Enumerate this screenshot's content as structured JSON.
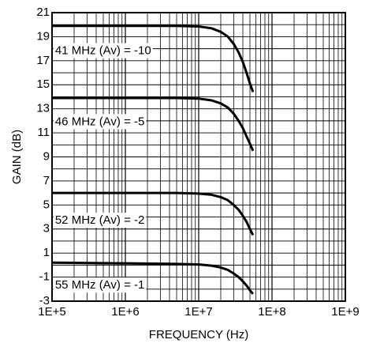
{
  "chart_data": {
    "type": "line",
    "title": "",
    "xlabel": "FREQUENCY (Hz)",
    "ylabel": "GAIN (dB)",
    "x_scale": "log",
    "xlim": [
      100000,
      1000000000
    ],
    "ylim": [
      -3,
      21
    ],
    "grid": true,
    "x_tick_labels": [
      "1E+5",
      "1E+6",
      "1E+7",
      "1E+8",
      "1E+9"
    ],
    "y_tick_labels": [
      "21",
      "19",
      "17",
      "15",
      "13",
      "11",
      "9",
      "7",
      "5",
      "3",
      "1",
      "-1",
      "-3"
    ],
    "series": [
      {
        "x": [
          100000,
          1000000,
          5000000,
          10000000,
          15000000,
          20000000,
          25000000,
          30000000,
          35000000,
          40000000,
          45000000,
          50000000,
          55000000
        ],
        "y": [
          19.9,
          19.9,
          19.9,
          19.85,
          19.7,
          19.4,
          19.0,
          18.4,
          17.7,
          16.9,
          16.0,
          15.1,
          14.4
        ]
      },
      {
        "x": [
          100000,
          1000000,
          5000000,
          10000000,
          15000000,
          20000000,
          25000000,
          30000000,
          35000000,
          40000000,
          45000000,
          50000000,
          55000000
        ],
        "y": [
          13.9,
          13.9,
          13.9,
          13.85,
          13.7,
          13.45,
          13.1,
          12.6,
          12.0,
          11.4,
          10.7,
          10.1,
          9.5
        ]
      },
      {
        "x": [
          100000,
          1000000,
          5000000,
          10000000,
          15000000,
          20000000,
          25000000,
          30000000,
          35000000,
          40000000,
          45000000,
          50000000,
          55000000
        ],
        "y": [
          6.0,
          6.0,
          6.0,
          5.95,
          5.85,
          5.65,
          5.4,
          5.0,
          4.6,
          4.1,
          3.6,
          3.0,
          2.5
        ]
      },
      {
        "x": [
          100000,
          1000000,
          5000000,
          10000000,
          15000000,
          20000000,
          25000000,
          30000000,
          35000000,
          40000000,
          45000000,
          50000000,
          55000000
        ],
        "y": [
          0.2,
          0.15,
          0.1,
          0.05,
          -0.05,
          -0.2,
          -0.4,
          -0.7,
          -1.0,
          -1.35,
          -1.7,
          -2.1,
          -2.4
        ]
      }
    ],
    "annotations": [
      {
        "text": "41 MHz (Av) = -10",
        "x": 110000,
        "y": 17.8
      },
      {
        "text": "46 MHz (Av) = -5",
        "x": 110000,
        "y": 11.9
      },
      {
        "text": "52 MHz (Av) = -2",
        "x": 110000,
        "y": 3.7
      },
      {
        "text": "55 MHz (Av) = -1",
        "x": 110000,
        "y": -1.7
      }
    ]
  }
}
